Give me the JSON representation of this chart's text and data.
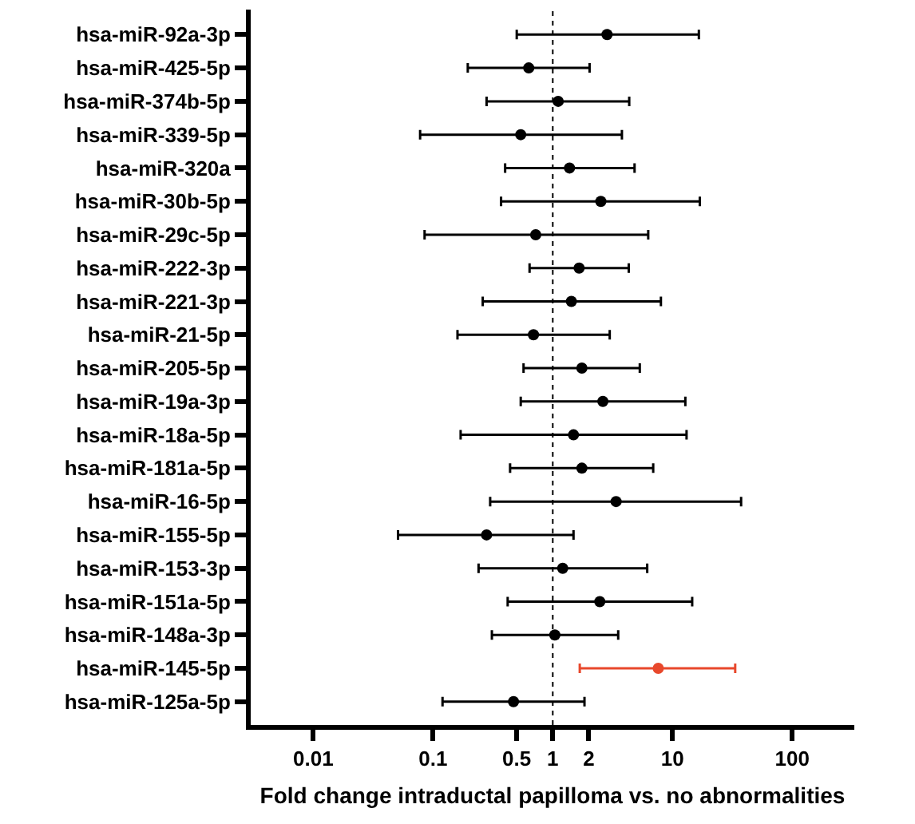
{
  "chart_data": {
    "type": "scatter",
    "orientation": "horizontal",
    "xlabel": "Fold change intraductal papilloma vs. no abnormalities",
    "categories": [
      "hsa-miR-92a-3p",
      "hsa-miR-425-5p",
      "hsa-miR-374b-5p",
      "hsa-miR-339-5p",
      "hsa-miR-320a",
      "hsa-miR-30b-5p",
      "hsa-miR-29c-5p",
      "hsa-miR-222-3p",
      "hsa-miR-221-3p",
      "hsa-miR-21-5p",
      "hsa-miR-205-5p",
      "hsa-miR-19a-3p",
      "hsa-miR-18a-5p",
      "hsa-miR-181a-5p",
      "hsa-miR-16-5p",
      "hsa-miR-155-5p",
      "hsa-miR-153-3p",
      "hsa-miR-151a-5p",
      "hsa-miR-148a-3p",
      "hsa-miR-145-5p",
      "hsa-miR-125a-5p"
    ],
    "values": [
      2.84,
      0.63,
      1.11,
      0.54,
      1.38,
      2.52,
      0.72,
      1.66,
      1.43,
      0.69,
      1.75,
      2.62,
      1.49,
      1.75,
      3.38,
      0.28,
      1.21,
      2.47,
      1.04,
      7.6,
      0.47
    ],
    "errors": [
      [
        0.5,
        16.6
      ],
      [
        0.195,
        2.03
      ],
      [
        0.28,
        4.35
      ],
      [
        0.078,
        3.78
      ],
      [
        0.4,
        4.82
      ],
      [
        0.37,
        16.9
      ],
      [
        0.085,
        6.27
      ],
      [
        0.64,
        4.31
      ],
      [
        0.26,
        8.0
      ],
      [
        0.16,
        2.99
      ],
      [
        0.57,
        5.33
      ],
      [
        0.54,
        12.8
      ],
      [
        0.17,
        13.1
      ],
      [
        0.44,
        6.9
      ],
      [
        0.3,
        37.4
      ],
      [
        0.051,
        1.49
      ],
      [
        0.24,
        6.15
      ],
      [
        0.42,
        14.6
      ],
      [
        0.31,
        3.52
      ],
      [
        1.68,
        33.4
      ],
      [
        0.12,
        1.84
      ]
    ],
    "colors": [
      "#000000",
      "#000000",
      "#000000",
      "#000000",
      "#000000",
      "#000000",
      "#000000",
      "#000000",
      "#000000",
      "#000000",
      "#000000",
      "#000000",
      "#000000",
      "#000000",
      "#000000",
      "#000000",
      "#000000",
      "#000000",
      "#000000",
      "#e8482c",
      "#000000"
    ],
    "log": "x",
    "xlim": [
      0.003,
      330
    ],
    "xticks": [
      0.01,
      0.1,
      0.5,
      1,
      2,
      10,
      100
    ],
    "marker": "circle",
    "ref_lines": [
      {
        "axis": "x",
        "value": 1,
        "line_style": "dotted",
        "color": "#000000"
      }
    ]
  }
}
